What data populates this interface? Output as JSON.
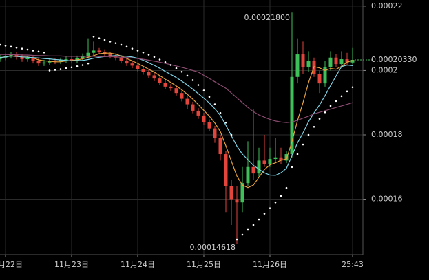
{
  "chart_data": {
    "type": "candlestick",
    "open": [
      0.0002035,
      0.000204,
      0.0002045,
      0.000205,
      0.0002042,
      0.0002035,
      0.0002038,
      0.000203,
      0.0002022,
      0.0002025,
      0.000203,
      0.0002028,
      0.0002032,
      0.0002035,
      0.000203,
      0.0002038,
      0.0002045,
      0.0002055,
      0.0002062,
      0.0002058,
      0.000205,
      0.0002045,
      0.000204,
      0.000203,
      0.0002022,
      0.0002015,
      0.0002005,
      0.0001995,
      0.0001985,
      0.0001975,
      0.0001962,
      0.000195,
      0.0001945,
      0.000193,
      0.0001912,
      0.0001895,
      0.0001875,
      0.000186,
      0.000184,
      0.000182,
      0.000179,
      0.000174,
      0.000164,
      0.00016,
      0.000159,
      0.000165,
      0.00017,
      0.000168,
      0.000172,
      0.000171,
      0.0001725,
      0.000173,
      0.000172,
      0.000174,
      0.000198,
      0.000205,
      0.000201,
      0.000203,
      0.000199,
      0.000196,
      0.000201,
      0.000204,
      0.000202,
      0.0002035,
      0.0002025
    ],
    "high": [
      0.0002048,
      0.0002053,
      0.0002058,
      0.0002058,
      0.000205,
      0.0002046,
      0.0002046,
      0.0002038,
      0.0002033,
      0.0002038,
      0.0002038,
      0.000204,
      0.0002043,
      0.0002043,
      0.0002046,
      0.0002053,
      0.00021,
      0.000209,
      0.000207,
      0.0002066,
      0.0002058,
      0.0002053,
      0.0002048,
      0.0002038,
      0.000203,
      0.0002023,
      0.0002013,
      0.0002003,
      0.0001993,
      0.0001983,
      0.000197,
      0.0001958,
      0.0001953,
      0.0001938,
      0.000192,
      0.0001903,
      0.0001883,
      0.0001868,
      0.0001848,
      0.0001828,
      0.00018,
      0.000175,
      0.000166,
      0.000164,
      0.00017,
      0.000178,
      0.000188,
      0.000176,
      0.00018,
      0.000176,
      0.000179,
      0.000176,
      0.000175,
      0.000218,
      0.00021,
      0.000209,
      0.000206,
      0.000204,
      0.0002,
      0.000203,
      0.000206,
      0.000205,
      0.000206,
      0.0002055,
      0.000207
    ],
    "low": [
      0.0002027,
      0.0002032,
      0.0002037,
      0.0002034,
      0.0002027,
      0.0002027,
      0.0002022,
      0.0002014,
      0.0002014,
      0.0002017,
      0.000202,
      0.000202,
      0.0002024,
      0.0002022,
      0.0002022,
      0.000203,
      0.0002037,
      0.0002047,
      0.000205,
      0.0002042,
      0.0002037,
      0.0002032,
      0.0002022,
      0.0002014,
      0.0002007,
      0.0001997,
      0.0001987,
      0.0001977,
      0.0001967,
      0.0001954,
      0.0001942,
      0.0001937,
      0.0001922,
      0.0001904,
      0.000188,
      0.0001867,
      0.000185,
      0.0001832,
      0.0001812,
      0.0001775,
      0.000172,
      0.000156,
      0.000152,
      0.00014618,
      0.000156,
      0.000164,
      0.000166,
      0.000167,
      0.00017,
      0.00017,
      0.0001715,
      0.000171,
      0.0001712,
      0.000173,
      0.000196,
      0.000199,
      0.0001995,
      0.000198,
      0.000193,
      0.000195,
      0.0002,
      0.000201,
      0.000201,
      0.0002015,
      0.000202
    ],
    "close": [
      0.000204,
      0.0002045,
      0.000205,
      0.0002042,
      0.0002035,
      0.0002038,
      0.000203,
      0.0002022,
      0.0002025,
      0.000203,
      0.0002028,
      0.0002032,
      0.0002035,
      0.000203,
      0.0002038,
      0.0002045,
      0.0002055,
      0.0002062,
      0.0002058,
      0.000205,
      0.0002045,
      0.000204,
      0.000203,
      0.0002022,
      0.0002015,
      0.0002005,
      0.0001995,
      0.0001985,
      0.0001975,
      0.0001962,
      0.000195,
      0.0001945,
      0.000193,
      0.0001912,
      0.0001895,
      0.0001875,
      0.000186,
      0.000184,
      0.000182,
      0.000179,
      0.000174,
      0.000164,
      0.00016,
      0.000159,
      0.000165,
      0.00017,
      0.000168,
      0.000172,
      0.000171,
      0.0001725,
      0.000173,
      0.000172,
      0.000174,
      0.000198,
      0.000205,
      0.000201,
      0.000203,
      0.000199,
      0.000196,
      0.000201,
      0.000204,
      0.000202,
      0.0002035,
      0.0002025,
      0.0002033
    ],
    "up_color": "#3fc15a",
    "down_color": "#e2453c",
    "ma_lines": [
      {
        "color": "#e8a33d",
        "values": [
          0.000204,
          0.0002042,
          0.0002045,
          0.0002044,
          0.0002042,
          0.0002042,
          0.0002039,
          0.0002033,
          0.000203,
          0.0002029,
          0.0002027,
          0.0002027,
          0.000203,
          0.0002031,
          0.0002033,
          0.0002036,
          0.0002041,
          0.0002046,
          0.0002052,
          0.0002054,
          0.0002054,
          0.0002051,
          0.0002045,
          0.0002037,
          0.000203,
          0.0002022,
          0.0002013,
          0.0002004,
          0.0001995,
          0.0001984,
          0.0001973,
          0.0001963,
          0.0001952,
          0.000194,
          0.0001926,
          0.0001911,
          0.0001894,
          0.0001876,
          0.0001858,
          0.0001837,
          0.000181,
          0.0001766,
          0.0001718,
          0.0001672,
          0.0001644,
          0.0001636,
          0.0001644,
          0.0001668,
          0.0001692,
          0.0001707,
          0.0001713,
          0.0001721,
          0.0001725,
          0.0001779,
          0.0001844,
          0.00019,
          0.0001962,
          0.0002012,
          0.0002008,
          0.0002,
          0.0002006,
          0.0002004,
          0.0002013,
          0.0002026,
          0.0002031
        ]
      },
      {
        "color": "#7fd3e6",
        "values": [
          0.000204,
          0.0002042,
          0.0002045,
          0.0002044,
          0.0002042,
          0.0002041,
          0.000204,
          0.0002039,
          0.0002037,
          0.0002036,
          0.0002034,
          0.0002033,
          0.0002031,
          0.000203,
          0.0002031,
          0.0002031,
          0.0002034,
          0.0002038,
          0.0002041,
          0.0002043,
          0.0002045,
          0.0002046,
          0.0002045,
          0.0002044,
          0.0002042,
          0.0002038,
          0.0002032,
          0.0002024,
          0.0002016,
          0.0002007,
          0.0001997,
          0.0001988,
          0.0001978,
          0.0001967,
          0.0001955,
          0.0001942,
          0.0001928,
          0.0001914,
          0.0001899,
          0.0001881,
          0.000186,
          0.000183,
          0.0001797,
          0.0001765,
          0.000174,
          0.0001723,
          0.0001705,
          0.0001693,
          0.0001682,
          0.0001675,
          0.0001674,
          0.0001682,
          0.0001696,
          0.0001735,
          0.0001775,
          0.0001806,
          0.0001841,
          0.0001868,
          0.0001893,
          0.0001922,
          0.0001953,
          0.0001983,
          0.0002012,
          0.0002017,
          0.0002015
        ]
      },
      {
        "color": "#8c4b70",
        "values": [
          0.000205,
          0.000205,
          0.0002049,
          0.0002049,
          0.0002048,
          0.0002048,
          0.0002047,
          0.0002046,
          0.0002046,
          0.0002045,
          0.0002045,
          0.0002045,
          0.0002044,
          0.0002044,
          0.0002044,
          0.0002044,
          0.0002044,
          0.0002044,
          0.0002043,
          0.0002043,
          0.0002043,
          0.0002042,
          0.0002041,
          0.000204,
          0.0002039,
          0.0002037,
          0.0002035,
          0.0002032,
          0.0002029,
          0.0002026,
          0.0002022,
          0.0002018,
          0.0002014,
          0.000201,
          0.0002005,
          0.0002,
          0.0001995,
          0.0001985,
          0.0001975,
          0.0001965,
          0.0001955,
          0.0001945,
          0.000193,
          0.0001915,
          0.00019,
          0.0001885,
          0.0001872,
          0.0001862,
          0.0001855,
          0.0001848,
          0.0001843,
          0.000184,
          0.0001838,
          0.000184,
          0.0001845,
          0.0001852,
          0.0001858,
          0.0001865,
          0.000187,
          0.0001875,
          0.000188,
          0.0001885,
          0.000189,
          0.0001895,
          0.00019
        ]
      }
    ],
    "sar": {
      "color": "#ffffff",
      "values": [
        0.000208,
        0.0002077,
        0.0002074,
        0.0002071,
        0.0002068,
        0.0002065,
        0.0002062,
        0.0002059,
        0.0002056,
        0.0002,
        0.0002002,
        0.0002004,
        0.0002007,
        0.000201,
        0.0002013,
        0.0002017,
        0.0002022,
        0.0002105,
        0.00021,
        0.0002095,
        0.000209,
        0.0002085,
        0.000208,
        0.0002074,
        0.0002068,
        0.0002062,
        0.0002056,
        0.0002049,
        0.0002042,
        0.0002034,
        0.0002026,
        0.0002017,
        0.0002007,
        0.0001996,
        0.0001984,
        0.000197,
        0.0001955,
        0.0001938,
        0.0001918,
        0.0001895,
        0.0001868,
        0.0001838,
        0.00018,
        0.0001475,
        0.000149,
        0.0001505,
        0.000152,
        0.0001537,
        0.0001555,
        0.0001572,
        0.000159,
        0.000161,
        0.0001635,
        0.00017,
        0.000174,
        0.000177,
        0.00018,
        0.0001825,
        0.000185,
        0.000187,
        0.000189,
        0.0001905,
        0.000192,
        0.0001935,
        0.0001948
      ]
    },
    "xlim": [
      0,
      65.875
    ],
    "xticks": [
      {
        "value": 1,
        "label": "11月22日"
      },
      {
        "value": 13,
        "label": "11月23日"
      },
      {
        "value": 25,
        "label": "11月24日"
      },
      {
        "value": 37,
        "label": "11月25日"
      },
      {
        "value": 49,
        "label": "11月26日"
      },
      {
        "value": 64,
        "label": "25:43"
      }
    ],
    "ylim": [
      0.0001428,
      0.0002219
    ],
    "yticks": [
      0.00016,
      0.00018,
      0.0002,
      0.00022
    ],
    "grid": true,
    "high_label": {
      "value": 0.000218,
      "label": "0.00021800"
    },
    "low_label": {
      "value": 0.00014618,
      "label": "0.00014618"
    },
    "current_price": {
      "value": 0.0002033,
      "label": "0.00020330"
    }
  }
}
